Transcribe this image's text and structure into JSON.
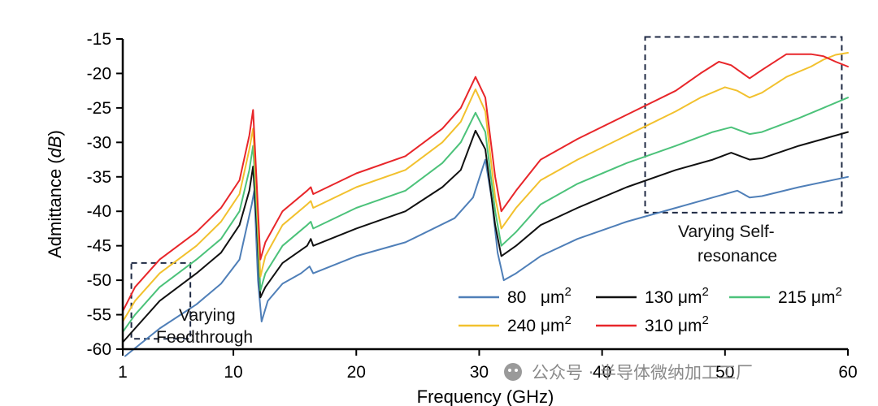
{
  "chart_data": {
    "type": "line",
    "title": "",
    "xlabel": "Frequency (GHz)",
    "ylabel_prefix": "Admittance (",
    "ylabel_unit": "dB",
    "ylabel_suffix": ")",
    "xlim": [
      1,
      60
    ],
    "ylim": [
      -60,
      -15
    ],
    "x_ticks": [
      1,
      10,
      20,
      30,
      40,
      50,
      60
    ],
    "y_ticks": [
      -15,
      -20,
      -25,
      -30,
      -35,
      -40,
      -45,
      -50,
      -55,
      -60
    ],
    "grid": false,
    "legend_position": "bottom-right",
    "series": [
      {
        "name": "80",
        "unit": "μm",
        "exp": "2",
        "color": "#4f7fb8",
        "points": [
          [
            1.2,
            -61
          ],
          [
            4,
            -57
          ],
          [
            7,
            -53.5
          ],
          [
            9,
            -50.5
          ],
          [
            10.5,
            -47
          ],
          [
            11.5,
            -39
          ],
          [
            11.7,
            -37
          ],
          [
            12,
            -50
          ],
          [
            12.3,
            -56
          ],
          [
            12.8,
            -53
          ],
          [
            14,
            -50.5
          ],
          [
            15.5,
            -49
          ],
          [
            16.2,
            -48
          ],
          [
            16.5,
            -49
          ],
          [
            20,
            -46.5
          ],
          [
            24,
            -44.5
          ],
          [
            28,
            -41
          ],
          [
            29.5,
            -38
          ],
          [
            30.5,
            -32.5
          ],
          [
            31,
            -38
          ],
          [
            31.5,
            -46
          ],
          [
            32,
            -50
          ],
          [
            33,
            -49
          ],
          [
            35,
            -46.5
          ],
          [
            38,
            -44
          ],
          [
            42,
            -41.5
          ],
          [
            46,
            -39.5
          ],
          [
            50,
            -37.5
          ],
          [
            51,
            -37
          ],
          [
            52,
            -38
          ],
          [
            53,
            -37.8
          ],
          [
            56,
            -36.5
          ],
          [
            60,
            -35
          ]
        ]
      },
      {
        "name": "130",
        "unit": "μm",
        "exp": "2",
        "color": "#111111",
        "points": [
          [
            1,
            -59
          ],
          [
            2,
            -57
          ],
          [
            4,
            -53
          ],
          [
            7,
            -49
          ],
          [
            9,
            -46
          ],
          [
            10.5,
            -42
          ],
          [
            11.3,
            -37
          ],
          [
            11.6,
            -33.5
          ],
          [
            11.9,
            -42
          ],
          [
            12.2,
            -52.5
          ],
          [
            12.6,
            -51
          ],
          [
            14,
            -47.5
          ],
          [
            16,
            -45
          ],
          [
            16.3,
            -44
          ],
          [
            16.5,
            -45
          ],
          [
            20,
            -42.5
          ],
          [
            24,
            -40
          ],
          [
            27,
            -36.5
          ],
          [
            28.5,
            -34
          ],
          [
            29.7,
            -28.3
          ],
          [
            30.5,
            -31
          ],
          [
            31.3,
            -42
          ],
          [
            31.8,
            -46.5
          ],
          [
            33,
            -45
          ],
          [
            35,
            -42
          ],
          [
            38,
            -39.5
          ],
          [
            42,
            -36.5
          ],
          [
            46,
            -34
          ],
          [
            49,
            -32.5
          ],
          [
            50.5,
            -31.5
          ],
          [
            52,
            -32.5
          ],
          [
            53,
            -32.3
          ],
          [
            56,
            -30.5
          ],
          [
            58,
            -29.5
          ],
          [
            60,
            -28.5
          ]
        ]
      },
      {
        "name": "215",
        "unit": "μm",
        "exp": "2",
        "color": "#4cc27a",
        "points": [
          [
            1,
            -57.5
          ],
          [
            2,
            -55
          ],
          [
            4,
            -51
          ],
          [
            7,
            -47
          ],
          [
            9,
            -44
          ],
          [
            10.5,
            -40
          ],
          [
            11.3,
            -34
          ],
          [
            11.6,
            -30.5
          ],
          [
            11.9,
            -40
          ],
          [
            12.2,
            -51.5
          ],
          [
            12.6,
            -49
          ],
          [
            14,
            -45
          ],
          [
            16,
            -42
          ],
          [
            16.3,
            -41.5
          ],
          [
            16.5,
            -42.5
          ],
          [
            20,
            -39.5
          ],
          [
            24,
            -37
          ],
          [
            27,
            -33
          ],
          [
            28.5,
            -30
          ],
          [
            29.7,
            -25.7
          ],
          [
            30.5,
            -28.5
          ],
          [
            31.3,
            -40
          ],
          [
            31.8,
            -45
          ],
          [
            33,
            -43
          ],
          [
            35,
            -39
          ],
          [
            38,
            -36
          ],
          [
            42,
            -33
          ],
          [
            46,
            -30.5
          ],
          [
            49,
            -28.5
          ],
          [
            50.5,
            -27.8
          ],
          [
            52,
            -28.8
          ],
          [
            53,
            -28.5
          ],
          [
            56,
            -26.5
          ],
          [
            58,
            -25
          ],
          [
            60,
            -23.5
          ]
        ]
      },
      {
        "name": "240",
        "unit": "μm",
        "exp": "2",
        "color": "#f2c12e",
        "points": [
          [
            1,
            -56
          ],
          [
            2,
            -53
          ],
          [
            4,
            -49
          ],
          [
            7,
            -45
          ],
          [
            9,
            -41.5
          ],
          [
            10.5,
            -37.5
          ],
          [
            11.3,
            -31
          ],
          [
            11.6,
            -28
          ],
          [
            11.9,
            -38
          ],
          [
            12.2,
            -49.5
          ],
          [
            12.6,
            -46.5
          ],
          [
            14,
            -42
          ],
          [
            16,
            -39
          ],
          [
            16.3,
            -38.5
          ],
          [
            16.5,
            -39.5
          ],
          [
            20,
            -36.5
          ],
          [
            24,
            -34
          ],
          [
            27,
            -30
          ],
          [
            28.5,
            -27
          ],
          [
            29.7,
            -22.3
          ],
          [
            30.5,
            -25.5
          ],
          [
            31.3,
            -38
          ],
          [
            31.8,
            -42.5
          ],
          [
            33,
            -39.5
          ],
          [
            35,
            -35.5
          ],
          [
            38,
            -32.5
          ],
          [
            42,
            -29
          ],
          [
            46,
            -25.5
          ],
          [
            48,
            -23.5
          ],
          [
            50,
            -22
          ],
          [
            51,
            -22.5
          ],
          [
            52,
            -23.5
          ],
          [
            53,
            -22.8
          ],
          [
            55,
            -20.5
          ],
          [
            57,
            -19
          ],
          [
            58,
            -18
          ],
          [
            59,
            -17.3
          ],
          [
            60,
            -17
          ]
        ]
      },
      {
        "name": "310",
        "unit": "μm",
        "exp": "2",
        "color": "#e8262a",
        "points": [
          [
            1,
            -54.5
          ],
          [
            2,
            -51
          ],
          [
            4,
            -47
          ],
          [
            7,
            -43
          ],
          [
            9,
            -39.5
          ],
          [
            10.5,
            -35.5
          ],
          [
            11.3,
            -29
          ],
          [
            11.6,
            -25.3
          ],
          [
            11.9,
            -36
          ],
          [
            12.2,
            -47
          ],
          [
            12.6,
            -44.5
          ],
          [
            14,
            -40
          ],
          [
            16,
            -37
          ],
          [
            16.3,
            -36.5
          ],
          [
            16.5,
            -37.5
          ],
          [
            20,
            -34.5
          ],
          [
            24,
            -32
          ],
          [
            27,
            -28
          ],
          [
            28.5,
            -25
          ],
          [
            29.7,
            -20.5
          ],
          [
            30.5,
            -23.5
          ],
          [
            31.3,
            -35
          ],
          [
            31.8,
            -40
          ],
          [
            33,
            -37
          ],
          [
            35,
            -32.5
          ],
          [
            38,
            -29.5
          ],
          [
            42,
            -26
          ],
          [
            46,
            -22.5
          ],
          [
            48,
            -20
          ],
          [
            49.5,
            -18.3
          ],
          [
            50.5,
            -18.8
          ],
          [
            52,
            -20.7
          ],
          [
            53,
            -19.5
          ],
          [
            55,
            -17.2
          ],
          [
            57,
            -17.2
          ],
          [
            58,
            -17.5
          ],
          [
            59,
            -18.3
          ],
          [
            60,
            -19
          ]
        ]
      }
    ],
    "annotations": [
      {
        "id": "feedthrough",
        "lines": [
          "Varying",
          "Feedthrough"
        ],
        "box": {
          "x0": 1.7,
          "x1": 6.5,
          "y0": -47.5,
          "y1": -58.5
        }
      },
      {
        "id": "self-resonance",
        "lines": [
          "Varying Self-",
          "resonance"
        ],
        "box": {
          "x0": 43.5,
          "x1": 59.5,
          "y0": -14.7,
          "y1": -40.2
        }
      }
    ]
  },
  "watermark": "公众号 · 半导体微纳加工工厂"
}
